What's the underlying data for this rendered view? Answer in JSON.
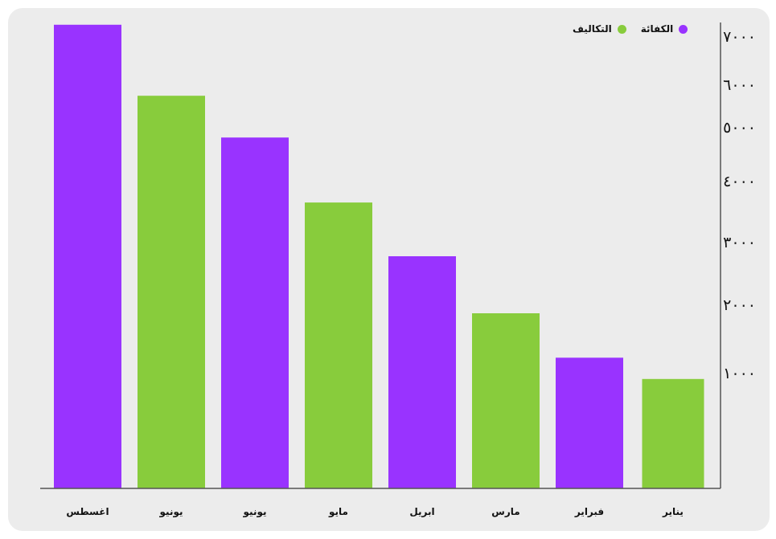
{
  "colors": {
    "card_background": "#ececec",
    "axis": "#555555",
    "text": "#111111"
  },
  "chart_data": {
    "type": "bar",
    "title": "",
    "xlabel": "",
    "ylabel": "",
    "ylim": [
      0,
      7000
    ],
    "y_ticks": [
      {
        "value": 1000,
        "label": "١٠٠٠"
      },
      {
        "value": 2000,
        "label": "٢٠٠٠"
      },
      {
        "value": 3000,
        "label": "٣٠٠٠"
      },
      {
        "value": 4000,
        "label": "٤٠٠٠"
      },
      {
        "value": 5000,
        "label": "٥٠٠٠"
      },
      {
        "value": 6000,
        "label": "٦٠٠٠"
      },
      {
        "value": 7000,
        "label": "٧٠٠٠"
      }
    ],
    "y_axis_side": "right",
    "category_order": "right-to-left",
    "grid": false,
    "legend_position": "top-right",
    "legend": [
      {
        "name": "الكفائة",
        "color": "#9933ff"
      },
      {
        "name": "التكاليف",
        "color": "#88cc3c"
      }
    ],
    "categories": [
      "يناير",
      "فبراير",
      "مارس",
      "ابريل",
      "مايو",
      "يونيو",
      "يونيو",
      "اغسطس"
    ],
    "values": [
      1650,
      1970,
      2640,
      3500,
      4310,
      5290,
      5920,
      6990
    ],
    "bar_series": [
      "التكاليف",
      "الكفائة",
      "التكاليف",
      "الكفائة",
      "التكاليف",
      "الكفائة",
      "التكاليف",
      "الكفائة"
    ]
  }
}
